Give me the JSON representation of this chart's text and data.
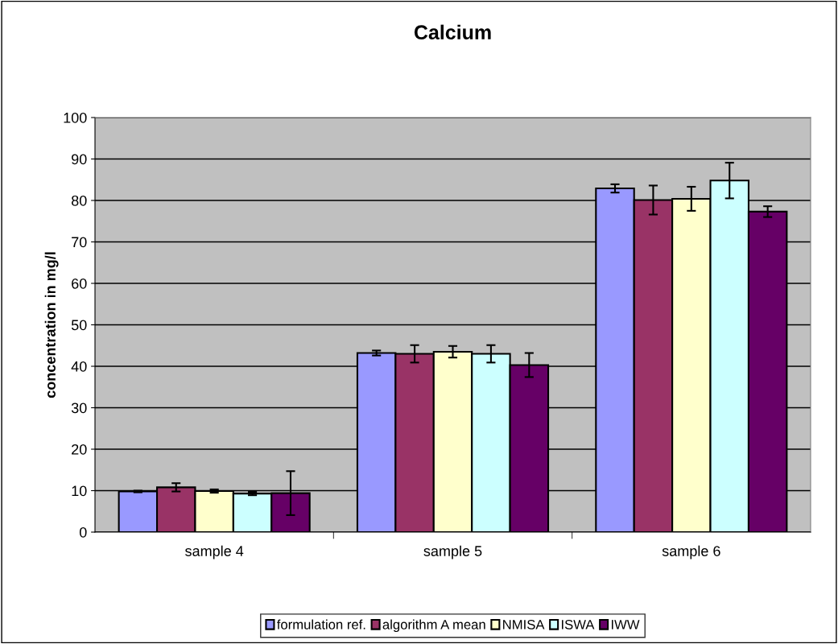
{
  "chart_data": {
    "type": "bar",
    "title": "Calcium",
    "ylabel": "concentration in mg/l",
    "categories": [
      "sample 4",
      "sample 5",
      "sample 6"
    ],
    "series": [
      {
        "name": "formulation ref.",
        "color": "#9999ff",
        "values": [
          9.8,
          43.2,
          82.9
        ],
        "errors": [
          0.2,
          0.6,
          1.0
        ]
      },
      {
        "name": "algorithm A mean",
        "color": "#993366",
        "values": [
          10.8,
          43.0,
          80.1
        ],
        "errors": [
          1.0,
          2.1,
          3.5
        ]
      },
      {
        "name": "NMISA",
        "color": "#ffffcc",
        "values": [
          9.9,
          43.5,
          80.4
        ],
        "errors": [
          0.4,
          1.4,
          2.9
        ]
      },
      {
        "name": "ISWA",
        "color": "#ccffff",
        "values": [
          9.3,
          43.0,
          84.8
        ],
        "errors": [
          0.4,
          2.1,
          4.3
        ]
      },
      {
        "name": "IWW",
        "color": "#660066",
        "values": [
          9.4,
          40.3,
          77.3
        ],
        "errors": [
          5.3,
          2.9,
          1.3
        ]
      }
    ],
    "ylim": [
      0,
      100
    ],
    "yticks": [
      0,
      10,
      20,
      30,
      40,
      50,
      60,
      70,
      80,
      90,
      100
    ],
    "grid": "y",
    "legend": "bottom"
  }
}
